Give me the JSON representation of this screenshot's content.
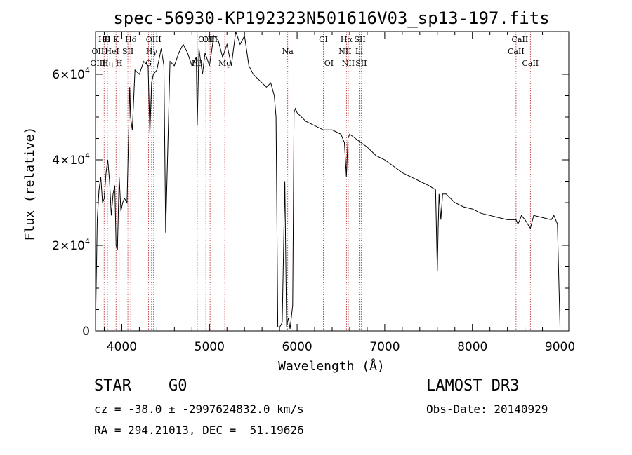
{
  "chart_data": {
    "type": "line",
    "title": "spec-56930-KP192323N501616V03_sp13-197.fits",
    "xlabel": "Wavelength (Å)",
    "ylabel": "Flux (relative)",
    "xlim": [
      3700,
      9100
    ],
    "ylim": [
      0,
      70000
    ],
    "x_ticks": [
      4000,
      5000,
      6000,
      7000,
      8000,
      9000
    ],
    "x_tick_labels": [
      "4000",
      "5000",
      "6000",
      "7000",
      "8000",
      "9000"
    ],
    "y_ticks": [
      0,
      20000,
      40000,
      60000
    ],
    "y_tick_labels": [
      {
        "mant": "0",
        "exp": ""
      },
      {
        "mant": "2×10",
        "exp": "4"
      },
      {
        "mant": "4×10",
        "exp": "4"
      },
      {
        "mant": "6×10",
        "exp": "4"
      }
    ],
    "series": [
      {
        "name": "flux",
        "x": [
          3700,
          3720,
          3740,
          3760,
          3780,
          3800,
          3820,
          3840,
          3860,
          3880,
          3900,
          3920,
          3935,
          3950,
          3970,
          3990,
          4010,
          4030,
          4060,
          4090,
          4100,
          4120,
          4150,
          4200,
          4250,
          4300,
          4320,
          4340,
          4360,
          4400,
          4450,
          4480,
          4500,
          4550,
          4600,
          4650,
          4700,
          4750,
          4800,
          4850,
          4861,
          4880,
          4920,
          4950,
          5000,
          5050,
          5100,
          5150,
          5200,
          5250,
          5300,
          5350,
          5400,
          5450,
          5500,
          5550,
          5600,
          5650,
          5700,
          5740,
          5760,
          5780,
          5800,
          5830,
          5860,
          5880,
          5900,
          5920,
          5950,
          5965,
          5980,
          6000,
          6050,
          6100,
          6200,
          6300,
          6400,
          6500,
          6540,
          6563,
          6580,
          6600,
          6700,
          6800,
          6900,
          7000,
          7100,
          7200,
          7300,
          7400,
          7500,
          7580,
          7600,
          7610,
          7620,
          7640,
          7660,
          7700,
          7800,
          7900,
          8000,
          8100,
          8200,
          8300,
          8400,
          8498,
          8520,
          8542,
          8560,
          8600,
          8662,
          8700,
          8800,
          8900,
          8930,
          8950,
          8970,
          9000
        ],
        "values": [
          1000,
          26000,
          33000,
          36000,
          30000,
          31000,
          37000,
          40000,
          35000,
          27000,
          32000,
          34000,
          20000,
          19000,
          36000,
          28000,
          30000,
          31000,
          30000,
          57000,
          50000,
          47000,
          61000,
          60000,
          63000,
          62000,
          46000,
          58000,
          60000,
          61000,
          66000,
          62000,
          23000,
          63000,
          62000,
          65000,
          67000,
          65000,
          62000,
          64000,
          48000,
          66000,
          60000,
          65000,
          62000,
          69000,
          68000,
          64000,
          67000,
          62000,
          70000,
          67000,
          69000,
          62000,
          60000,
          59000,
          58000,
          57000,
          58000,
          55000,
          50000,
          1000,
          800,
          2000,
          35000,
          1000,
          3000,
          500,
          6000,
          51000,
          52000,
          51000,
          50000,
          49000,
          48000,
          47000,
          47000,
          46000,
          44000,
          36000,
          45000,
          46000,
          44500,
          43000,
          41000,
          40000,
          38500,
          37000,
          36000,
          35000,
          34000,
          33000,
          14000,
          24000,
          32000,
          26000,
          32000,
          32000,
          30000,
          29000,
          28500,
          27500,
          27000,
          26500,
          26000,
          26000,
          25000,
          26000,
          27000,
          26000,
          24000,
          27000,
          26500,
          26000,
          27000,
          26000,
          25000,
          1000
        ]
      }
    ],
    "emission_lines": [
      {
        "label": "Hθ",
        "row": 0,
        "wavelength": 3798
      },
      {
        "label": "H",
        "row": 0,
        "wavelength": 3835
      },
      {
        "label": "K",
        "row": 0,
        "wavelength": 3934
      },
      {
        "label": "Hδ",
        "row": 0,
        "wavelength": 4102
      },
      {
        "label": "OIII",
        "row": 0,
        "wavelength": 4363
      },
      {
        "label": "OIII",
        "row": 0,
        "wavelength": 4959
      },
      {
        "label": "OIII",
        "row": 0,
        "wavelength": 5007
      },
      {
        "label": "CI",
        "row": 0,
        "wavelength": 6300
      },
      {
        "label": "Hα",
        "row": 0,
        "wavelength": 6563
      },
      {
        "label": "SII",
        "row": 0,
        "wavelength": 6717
      },
      {
        "label": "CaII",
        "row": 0,
        "wavelength": 8542
      },
      {
        "label": "OII",
        "row": 1,
        "wavelength": 3727
      },
      {
        "label": "HeI",
        "row": 1,
        "wavelength": 3889
      },
      {
        "label": "SII",
        "row": 1,
        "wavelength": 4069
      },
      {
        "label": "Hγ",
        "row": 1,
        "wavelength": 4340
      },
      {
        "label": "Na",
        "row": 1,
        "wavelength": 5893
      },
      {
        "label": "NII",
        "row": 1,
        "wavelength": 6548
      },
      {
        "label": "Li",
        "row": 1,
        "wavelength": 6708
      },
      {
        "label": "CaII",
        "row": 1,
        "wavelength": 8498
      },
      {
        "label": "OIII",
        "row": 2,
        "wavelength": 3727
      },
      {
        "label": "Hη",
        "row": 2,
        "wavelength": 3835
      },
      {
        "label": "H",
        "row": 2,
        "wavelength": 3970
      },
      {
        "label": "G",
        "row": 2,
        "wavelength": 4305
      },
      {
        "label": "Hβ",
        "row": 2,
        "wavelength": 4861
      },
      {
        "label": "Mg",
        "row": 2,
        "wavelength": 5175
      },
      {
        "label": "OI",
        "row": 2,
        "wavelength": 6363
      },
      {
        "label": "NII",
        "row": 2,
        "wavelength": 6584
      },
      {
        "label": "SII",
        "row": 2,
        "wavelength": 6731
      },
      {
        "label": "CaII",
        "row": 2,
        "wavelength": 8662
      }
    ],
    "line_color": "#000000",
    "marker_color": "#b22222"
  },
  "info": {
    "class_line": "STAR    G0",
    "survey": "LAMOST DR3",
    "redshift": "cz = -38.0 ± -2997624832.0 km/s",
    "obs_date": "Obs-Date: 20140929",
    "coords": "RA = 294.21013, DEC =  51.19626"
  }
}
